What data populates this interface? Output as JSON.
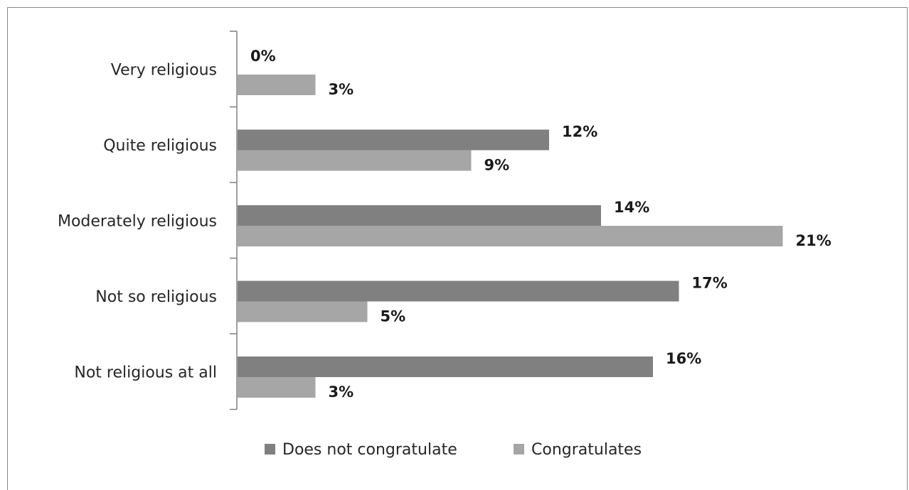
{
  "chart_data": {
    "type": "bar",
    "orientation": "horizontal",
    "categories": [
      "Very religious",
      "Quite religious",
      "Moderately religious",
      "Not so religious",
      "Not religious at all"
    ],
    "series": [
      {
        "name": "Does not congratulate",
        "values": [
          0,
          12,
          14,
          17,
          16
        ],
        "labels": [
          "0%",
          "12%",
          "14%",
          "17%",
          "16%"
        ],
        "color": "#808080"
      },
      {
        "name": "Congratulates",
        "values": [
          3,
          9,
          21,
          5,
          3
        ],
        "labels": [
          "3%",
          "9%",
          "21%",
          "5%",
          "3%"
        ],
        "color": "#a6a6a6"
      }
    ],
    "unit": "%",
    "xlim": [
      0,
      22
    ],
    "grid": false,
    "legend": "bottom"
  }
}
